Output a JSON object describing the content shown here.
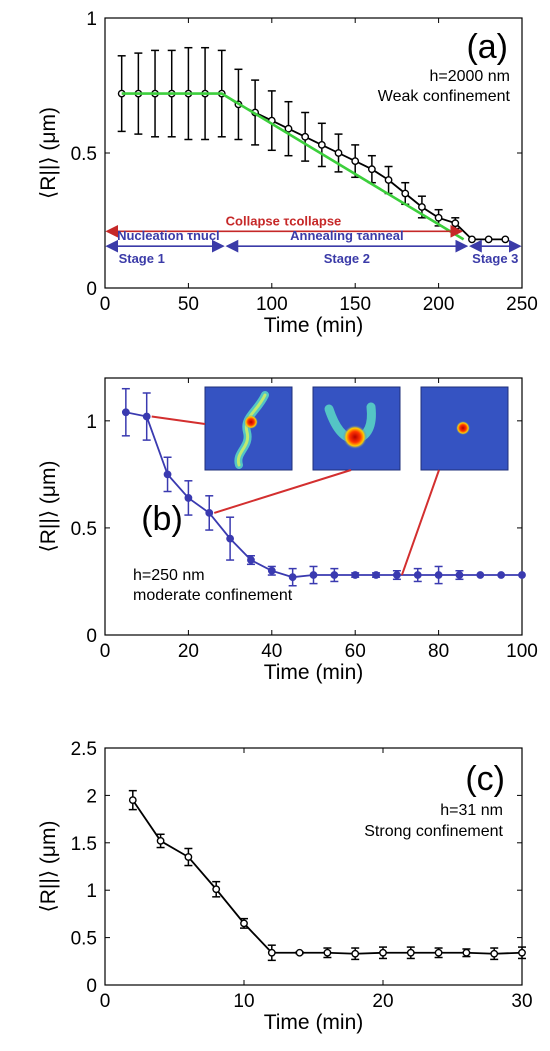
{
  "chart_data": [
    {
      "type": "line",
      "panel": "(a)",
      "xlabel": "Time (min)",
      "ylabel": "⟨R||⟩ (μm)",
      "xlim": [
        0,
        250
      ],
      "ylim": [
        0,
        1
      ],
      "xticks": [
        0,
        50,
        100,
        150,
        200,
        250
      ],
      "yticks": [
        0,
        0.5,
        1
      ],
      "ytick_labels": [
        "0",
        "0.5",
        "1"
      ],
      "notes": [
        "h=2000 nm",
        "Weak confinement"
      ],
      "series": [
        {
          "color": "#000000",
          "x": [
            10,
            20,
            30,
            40,
            50,
            60,
            70,
            80,
            90,
            100,
            110,
            120,
            130,
            140,
            150,
            160,
            170,
            180,
            190,
            200,
            210,
            220,
            230,
            240
          ],
          "y": [
            0.72,
            0.72,
            0.72,
            0.72,
            0.72,
            0.72,
            0.72,
            0.68,
            0.65,
            0.62,
            0.59,
            0.56,
            0.53,
            0.5,
            0.47,
            0.44,
            0.4,
            0.35,
            0.3,
            0.26,
            0.24,
            0.18,
            0.18,
            0.18
          ],
          "yerr": [
            0.14,
            0.15,
            0.16,
            0.16,
            0.17,
            0.17,
            0.16,
            0.13,
            0.12,
            0.11,
            0.1,
            0.09,
            0.08,
            0.07,
            0.06,
            0.05,
            0.05,
            0.04,
            0.04,
            0.03,
            0.02,
            0,
            0,
            0
          ]
        },
        {
          "color": "#3ccf3c",
          "x": [
            10,
            70,
            215
          ],
          "y": [
            0.72,
            0.72,
            0.18
          ]
        }
      ],
      "annotations": {
        "collapse": {
          "text": "Collapse τcollapse",
          "x": [
            0,
            215
          ],
          "y": 0.21
        },
        "nucleation": {
          "text": "Nucleation τnucl",
          "x_center": 38
        },
        "annealing": {
          "text": "Annealing τanneal",
          "x_center": 145
        },
        "stage1": {
          "text": "Stage 1",
          "x": [
            0,
            72
          ]
        },
        "stage2": {
          "text": "Stage 2",
          "x": [
            72,
            218
          ]
        },
        "stage3": {
          "text": "Stage 3",
          "x": [
            218,
            250
          ]
        }
      }
    },
    {
      "type": "line",
      "panel": "(b)",
      "xlabel": "Time (min)",
      "ylabel": "⟨R||⟩ (μm)",
      "xlim": [
        0,
        100
      ],
      "ylim": [
        0,
        1.2
      ],
      "xticks": [
        0,
        20,
        40,
        60,
        80,
        100
      ],
      "yticks": [
        0,
        0.5,
        1
      ],
      "ytick_labels": [
        "0",
        "0.5",
        "1"
      ],
      "notes": [
        "h=250 nm",
        "moderate confinement"
      ],
      "series": [
        {
          "color": "#3a3ab0",
          "x": [
            5,
            10,
            15,
            20,
            25,
            30,
            35,
            40,
            45,
            50,
            55,
            60,
            65,
            70,
            75,
            80,
            85,
            90,
            95,
            100
          ],
          "y": [
            1.04,
            1.02,
            0.75,
            0.64,
            0.57,
            0.45,
            0.35,
            0.3,
            0.27,
            0.28,
            0.28,
            0.28,
            0.28,
            0.28,
            0.28,
            0.28,
            0.28,
            0.28,
            0.28,
            0.28
          ],
          "yerr": [
            0.11,
            0.11,
            0.08,
            0.08,
            0.08,
            0.1,
            0.02,
            0.02,
            0.04,
            0.04,
            0.03,
            0.01,
            0.01,
            0.02,
            0.03,
            0.04,
            0.02,
            0,
            0,
            0
          ]
        }
      ],
      "insets": [
        {
          "name": "extended-coil",
          "linked_point_x": 10
        },
        {
          "name": "partial-globule",
          "linked_point_x": 25
        },
        {
          "name": "collapsed-globule",
          "linked_point_x": 70
        }
      ]
    },
    {
      "type": "line",
      "panel": "(c)",
      "xlabel": "Time (min)",
      "ylabel": "⟨R||⟩ (μm)",
      "xlim": [
        0,
        30
      ],
      "ylim": [
        0,
        2.5
      ],
      "xticks": [
        0,
        10,
        20,
        30
      ],
      "yticks": [
        0,
        0.5,
        1,
        1.5,
        2,
        2.5
      ],
      "ytick_labels": [
        "0",
        "0.5",
        "1",
        "1.5",
        "2",
        "2.5"
      ],
      "notes": [
        "h=31 nm",
        "Strong confinement"
      ],
      "series": [
        {
          "color": "#000000",
          "x": [
            2,
            4,
            6,
            8,
            10,
            12,
            14,
            16,
            18,
            20,
            22,
            24,
            26,
            28,
            30
          ],
          "y": [
            1.95,
            1.52,
            1.35,
            1.01,
            0.65,
            0.34,
            0.34,
            0.34,
            0.33,
            0.34,
            0.34,
            0.34,
            0.34,
            0.33,
            0.34
          ],
          "yerr": [
            0.1,
            0.07,
            0.09,
            0.08,
            0.05,
            0.08,
            0.01,
            0.05,
            0.06,
            0.06,
            0.06,
            0.05,
            0.04,
            0.06,
            0.06
          ]
        }
      ]
    }
  ]
}
